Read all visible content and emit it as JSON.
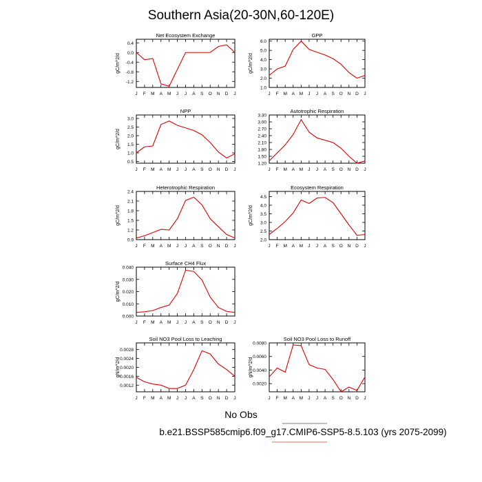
{
  "title": "Southern Asia(20-30N,60-120E)",
  "legend": {
    "label": "No Obs",
    "line_color": "#e23a3a"
  },
  "caption": "b.e21.BSSP585cmip6.f09_g17.CMIP6-SSP5-8.5.103 (yrs 2075-2099)",
  "series_color": "#e00000",
  "chart_data": [
    {
      "type": "line",
      "title": "Net Ecosystem Exchange",
      "ylabel": "gC/m^2/d",
      "x": [
        "J",
        "F",
        "M",
        "A",
        "M",
        "J",
        "J",
        "A",
        "S",
        "O",
        "N",
        "D",
        "J"
      ],
      "values": [
        0.0,
        -0.3,
        -0.25,
        -1.3,
        -1.4,
        -0.7,
        0.0,
        0.0,
        0.0,
        0.0,
        0.25,
        0.32,
        0.0
      ],
      "ylim": [
        -1.45,
        0.55
      ],
      "yticks": [
        -1.2,
        -0.8,
        -0.4,
        0.0,
        0.4
      ],
      "ytick_labels": [
        "-1.2",
        "-0.8",
        "-0.4",
        "0.0",
        "0.4"
      ]
    },
    {
      "type": "line",
      "title": "GPP",
      "ylabel": "gC/m^2/d",
      "x": [
        "J",
        "F",
        "M",
        "A",
        "M",
        "J",
        "J",
        "A",
        "S",
        "O",
        "N",
        "D",
        "J"
      ],
      "values": [
        2.3,
        3.0,
        3.3,
        5.1,
        6.0,
        5.1,
        4.8,
        4.5,
        4.1,
        3.5,
        2.6,
        2.0,
        2.3
      ],
      "ylim": [
        1.0,
        6.2
      ],
      "yticks": [
        1.0,
        2.0,
        3.0,
        4.0,
        5.0,
        6.0
      ],
      "ytick_labels": [
        "1.0",
        "2.0",
        "3.0",
        "4.0",
        "5.0",
        "6.0"
      ]
    },
    {
      "type": "line",
      "title": "NPP",
      "ylabel": "gC/m^2/d",
      "x": [
        "J",
        "F",
        "M",
        "A",
        "M",
        "J",
        "J",
        "A",
        "S",
        "O",
        "N",
        "D",
        "J"
      ],
      "values": [
        1.0,
        1.35,
        1.4,
        2.65,
        2.85,
        2.6,
        2.45,
        2.3,
        2.05,
        1.6,
        1.05,
        0.7,
        0.95
      ],
      "ylim": [
        0.4,
        3.2
      ],
      "yticks": [
        0.5,
        1.0,
        1.5,
        2.0,
        2.5,
        3.0
      ],
      "ytick_labels": [
        "0.5",
        "1.0",
        "1.5",
        "2.0",
        "2.5",
        "3.0"
      ]
    },
    {
      "type": "line",
      "title": "Autotrophic Respiration",
      "ylabel": "",
      "x": [
        "J",
        "F",
        "M",
        "A",
        "M",
        "J",
        "J",
        "A",
        "S",
        "O",
        "N",
        "D",
        "J"
      ],
      "values": [
        1.3,
        1.65,
        2.0,
        2.45,
        3.1,
        2.55,
        2.3,
        2.2,
        2.1,
        1.85,
        1.5,
        1.2,
        1.3
      ],
      "ylim": [
        1.2,
        3.3
      ],
      "yticks": [
        1.2,
        1.5,
        1.8,
        2.1,
        2.4,
        2.7,
        3.0,
        3.3
      ],
      "ytick_labels": [
        "1.20",
        "1.50",
        "1.80",
        "2.10",
        "2.40",
        "2.70",
        "3.00",
        "3.30"
      ]
    },
    {
      "type": "line",
      "title": "Heterotrophic Respiration",
      "ylabel": "gC/m^2/d",
      "x": [
        "J",
        "F",
        "M",
        "A",
        "M",
        "J",
        "J",
        "A",
        "S",
        "O",
        "N",
        "D",
        "J"
      ],
      "values": [
        0.95,
        1.02,
        1.12,
        1.22,
        1.2,
        1.55,
        2.12,
        2.22,
        1.98,
        1.55,
        1.3,
        1.06,
        0.95
      ],
      "ylim": [
        0.9,
        2.4
      ],
      "yticks": [
        0.9,
        1.2,
        1.5,
        1.8,
        2.1,
        2.4
      ],
      "ytick_labels": [
        "0.9",
        "1.2",
        "1.5",
        "1.8",
        "2.1",
        "2.4"
      ]
    },
    {
      "type": "line",
      "title": "Ecosystem Respiration",
      "ylabel": "gC/m^2/d",
      "x": [
        "J",
        "F",
        "M",
        "A",
        "M",
        "J",
        "J",
        "A",
        "S",
        "O",
        "N",
        "D",
        "J"
      ],
      "values": [
        2.3,
        2.65,
        3.05,
        3.55,
        4.3,
        4.1,
        4.42,
        4.45,
        4.15,
        3.5,
        2.85,
        2.25,
        2.3
      ],
      "ylim": [
        2.0,
        4.8
      ],
      "yticks": [
        2.0,
        2.5,
        3.0,
        3.5,
        4.0,
        4.5
      ],
      "ytick_labels": [
        "2.0",
        "2.5",
        "3.0",
        "3.5",
        "4.0",
        "4.5"
      ]
    },
    {
      "type": "line",
      "title": "Surface CH4 Flux",
      "ylabel": "gC/m^2/d",
      "x": [
        "J",
        "F",
        "M",
        "A",
        "M",
        "J",
        "J",
        "A",
        "S",
        "O",
        "N",
        "D",
        "J"
      ],
      "values": [
        0.003,
        0.0035,
        0.0045,
        0.007,
        0.009,
        0.0185,
        0.0375,
        0.0365,
        0.0295,
        0.0155,
        0.007,
        0.0038,
        0.003
      ],
      "ylim": [
        0.0,
        0.04
      ],
      "yticks": [
        0.0,
        0.01,
        0.02,
        0.03,
        0.04
      ],
      "ytick_labels": [
        "0.000",
        "0.010",
        "0.020",
        "0.030",
        "0.040"
      ]
    },
    {
      "type": "line",
      "title": "Soil NO3 Pool Loss to Leaching",
      "ylabel": "gN/m^2/d",
      "x": [
        "J",
        "F",
        "M",
        "A",
        "M",
        "J",
        "J",
        "A",
        "S",
        "O",
        "N",
        "D",
        "J"
      ],
      "values": [
        0.00155,
        0.00135,
        0.00125,
        0.0012,
        0.00105,
        0.00105,
        0.0012,
        0.0019,
        0.00275,
        0.0026,
        0.00215,
        0.0019,
        0.0016
      ],
      "ylim": [
        0.0009,
        0.0031
      ],
      "yticks": [
        0.0012,
        0.0016,
        0.002,
        0.0024,
        0.0028
      ],
      "ytick_labels": [
        "0.0012",
        "0.0016",
        "0.0020",
        "0.0024",
        "0.0028"
      ]
    },
    {
      "type": "line",
      "title": "Soil NO3 Pool Loss to Runoff",
      "ylabel": "gN/m^2/d",
      "x": [
        "J",
        "F",
        "M",
        "A",
        "M",
        "J",
        "J",
        "A",
        "S",
        "O",
        "N",
        "D",
        "J"
      ],
      "values": [
        0.003,
        0.0043,
        0.0037,
        0.0077,
        0.0076,
        0.0048,
        0.0043,
        0.0041,
        0.0026,
        0.0008,
        0.0015,
        0.001,
        0.003
      ],
      "ylim": [
        0.0008,
        0.008
      ],
      "yticks": [
        0.002,
        0.004,
        0.006,
        0.008
      ],
      "ytick_labels": [
        "0.0020",
        "0.0040",
        "0.0060",
        "0.0080"
      ]
    }
  ]
}
